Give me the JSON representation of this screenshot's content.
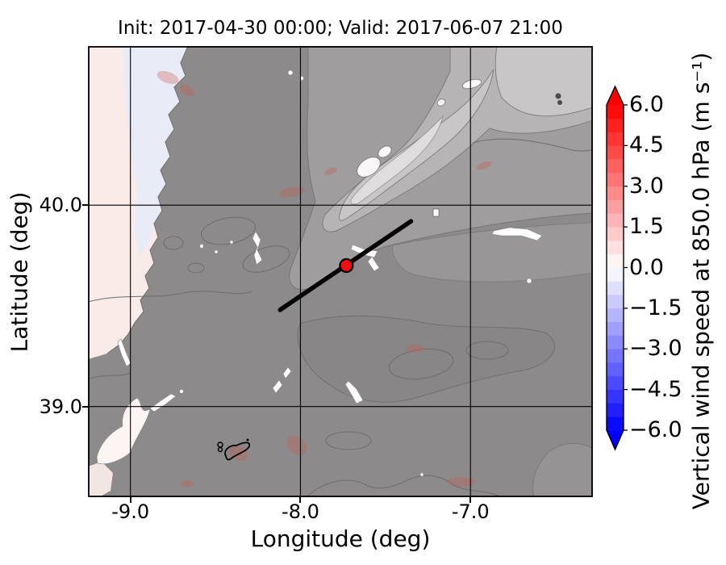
{
  "chart_data": {
    "type": "map-filled-contour",
    "title": "Init: 2017-04-30 00:00; Valid: 2017-06-07 21:00",
    "xlabel": "Longitude (deg)",
    "ylabel": "Latitude (deg)",
    "xlim": [
      -9.25,
      -6.28
    ],
    "ylim": [
      38.55,
      40.79
    ],
    "grid": true,
    "x_ticks": [
      {
        "value": -9.0,
        "label": "-9.0"
      },
      {
        "value": -8.0,
        "label": "-8.0"
      },
      {
        "value": -7.0,
        "label": "-7.0"
      }
    ],
    "y_ticks": [
      {
        "value": 40.0,
        "label": "40.0"
      },
      {
        "value": 39.0,
        "label": "39.0"
      }
    ],
    "colorbar": {
      "label": "Vertical wind speed at 850.0 hPa (m s⁻¹)",
      "cmap": "blue-white-red",
      "vmin": -6.0,
      "vmax": 6.0,
      "step": 0.5,
      "extend": "both",
      "ticks": [
        {
          "value": 6.0,
          "label": "6.0"
        },
        {
          "value": 4.5,
          "label": "4.5"
        },
        {
          "value": 3.0,
          "label": "3.0"
        },
        {
          "value": 1.5,
          "label": "1.5"
        },
        {
          "value": 0.0,
          "label": "0.0"
        },
        {
          "value": -1.5,
          "label": "−1.5"
        },
        {
          "value": -3.0,
          "label": "−3.0"
        },
        {
          "value": -4.5,
          "label": "−4.5"
        },
        {
          "value": -6.0,
          "label": "−6.0"
        }
      ]
    },
    "marker": {
      "name": "station-point",
      "lon": -7.73,
      "lat": 39.7
    },
    "transect": {
      "from": {
        "lon": -8.12,
        "lat": 39.48
      },
      "to": {
        "lon": -7.35,
        "lat": 39.92
      }
    },
    "field_summary": "Vertical wind speed near 0 m/s over most of the domain; weak positive (pale pink) values over the Atlantic west of the coastline; gray shaded-relief terrain with contour lines over land."
  },
  "colors": {
    "marker": "#f10e10",
    "marker_edge": "#000000",
    "transect": "#000000",
    "grid": "#000000",
    "ocean_pink": "#f8ebe8",
    "coast_lavender": "#e9ecf6",
    "land_base": "#8d8a8b",
    "cmap_over": "#ff0000",
    "cmap_under": "#0000ff"
  }
}
